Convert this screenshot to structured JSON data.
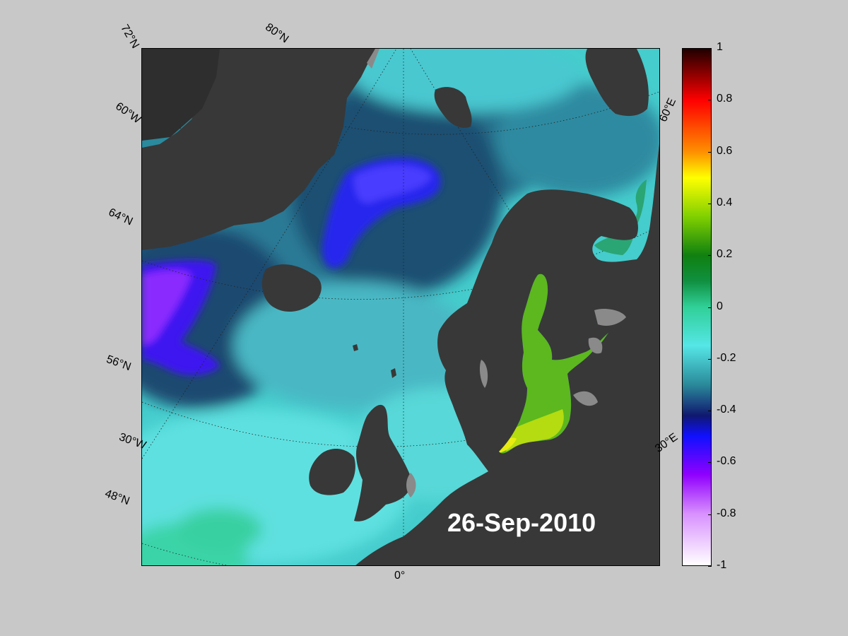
{
  "map": {
    "date": "26-Sep-2010",
    "graticule_labels": {
      "lat_72": "72°N",
      "lat_80": "80°N",
      "lon_60w": "60°W",
      "lat_64": "64°N",
      "lat_56": "56°N",
      "lon_30w": "30°W",
      "lat_48": "48°N",
      "lon_0": "0°",
      "lon_60e": "60°E",
      "lon_30e": "30°E"
    },
    "colors": {
      "land": "#383838",
      "ocean_base": "#3fc4c4",
      "coast_gray": "#8a8a8a"
    }
  },
  "colorbar": {
    "min": -1,
    "max": 1,
    "ticks": [
      "1",
      "0.8",
      "0.6",
      "0.4",
      "0.2",
      "0",
      "-0.2",
      "-0.4",
      "-0.6",
      "-0.8",
      "-1"
    ],
    "colormap": [
      {
        "v": -1.0,
        "c": "#ffffff"
      },
      {
        "v": -0.8,
        "c": "#d890ff"
      },
      {
        "v": -0.65,
        "c": "#9000ff"
      },
      {
        "v": -0.5,
        "c": "#1010ff"
      },
      {
        "v": -0.42,
        "c": "#101870"
      },
      {
        "v": -0.3,
        "c": "#2a8a9a"
      },
      {
        "v": -0.15,
        "c": "#55e6e6"
      },
      {
        "v": 0.0,
        "c": "#30d098"
      },
      {
        "v": 0.1,
        "c": "#109040"
      },
      {
        "v": 0.2,
        "c": "#108010"
      },
      {
        "v": 0.35,
        "c": "#80d000"
      },
      {
        "v": 0.5,
        "c": "#ffff00"
      },
      {
        "v": 0.6,
        "c": "#ff9000"
      },
      {
        "v": 0.8,
        "c": "#ff0000"
      },
      {
        "v": 0.9,
        "c": "#900000"
      },
      {
        "v": 1.0,
        "c": "#200000"
      }
    ]
  }
}
